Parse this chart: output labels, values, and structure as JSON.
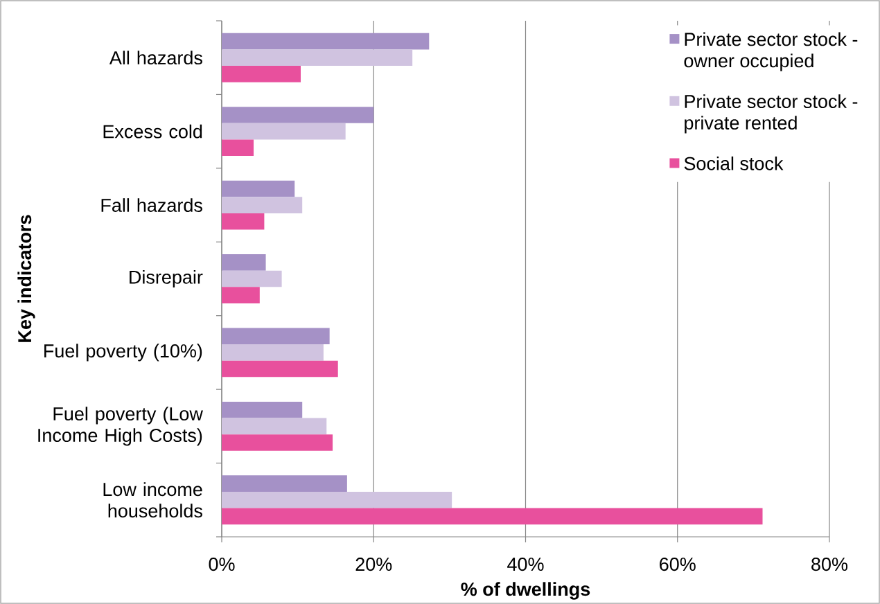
{
  "chart_data": {
    "type": "bar",
    "orientation": "horizontal",
    "xlabel": "% of dwellings",
    "ylabel": "Key indicators",
    "categories": [
      "All hazards",
      "Excess cold",
      "Fall hazards",
      "Disrepair",
      "Fuel poverty (10%)",
      "Fuel poverty (Low Income High Costs)",
      "Low income households"
    ],
    "series": [
      {
        "name": "Private sector stock - owner occupied",
        "color": "#a591c6",
        "values": [
          27.3,
          20.0,
          9.6,
          5.8,
          14.2,
          10.6,
          16.5
        ]
      },
      {
        "name": "Private sector stock - private rented",
        "color": "#d0c3e0",
        "values": [
          25.1,
          16.3,
          10.6,
          7.9,
          13.4,
          13.8,
          30.3
        ]
      },
      {
        "name": "Social stock",
        "color": "#e8509d",
        "values": [
          10.4,
          4.2,
          5.6,
          5.0,
          15.3,
          14.6,
          71.2
        ]
      }
    ],
    "xlim": [
      0,
      80
    ],
    "xticks": [
      {
        "value": 0,
        "label": "0%"
      },
      {
        "value": 20,
        "label": "20%"
      },
      {
        "value": 40,
        "label": "40%"
      },
      {
        "value": 60,
        "label": "60%"
      },
      {
        "value": 80,
        "label": "80%"
      }
    ],
    "grid": "x",
    "legend": "top right"
  }
}
